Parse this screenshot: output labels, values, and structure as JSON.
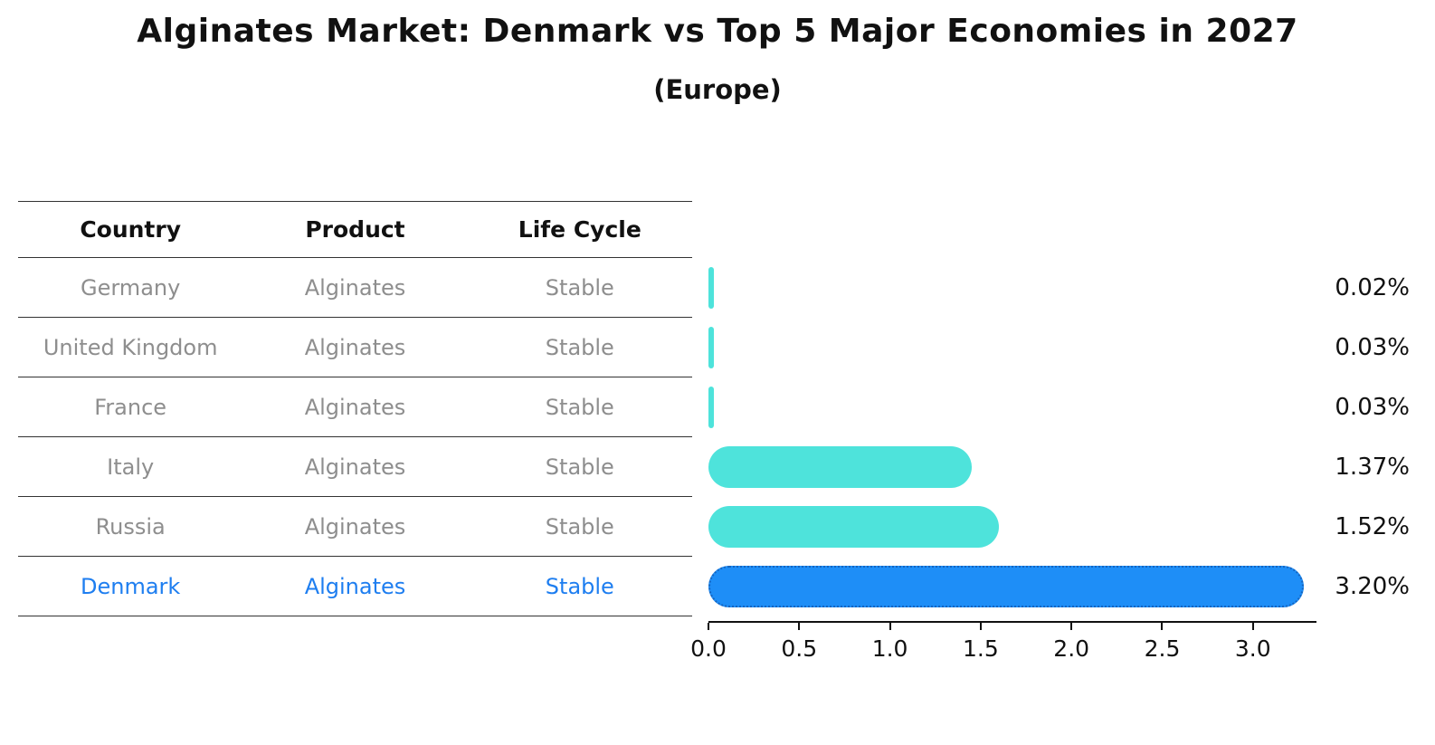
{
  "title": "Alginates Market: Denmark vs Top 5 Major Economies in 2027",
  "subtitle": "(Europe)",
  "table": {
    "headers": [
      "Country",
      "Product",
      "Life Cycle"
    ]
  },
  "chart_data": {
    "type": "bar",
    "orientation": "horizontal",
    "title": "Alginates Market: Denmark vs Top 5 Major Economies in 2027",
    "subtitle": "(Europe)",
    "categories": [
      "Germany",
      "United Kingdom",
      "France",
      "Italy",
      "Russia",
      "Denmark"
    ],
    "values": [
      0.02,
      0.03,
      0.03,
      1.37,
      1.52,
      3.2
    ],
    "value_labels": [
      "0.02%",
      "0.03%",
      "0.03%",
      "1.37%",
      "1.52%",
      "3.20%"
    ],
    "rows": [
      {
        "country": "Germany",
        "product": "Alginates",
        "life_cycle": "Stable",
        "value": 0.02,
        "label": "0.02%",
        "highlight": false
      },
      {
        "country": "United Kingdom",
        "product": "Alginates",
        "life_cycle": "Stable",
        "value": 0.03,
        "label": "0.03%",
        "highlight": false
      },
      {
        "country": "France",
        "product": "Alginates",
        "life_cycle": "Stable",
        "value": 0.03,
        "label": "0.03%",
        "highlight": false
      },
      {
        "country": "Italy",
        "product": "Alginates",
        "life_cycle": "Stable",
        "value": 1.37,
        "label": "1.37%",
        "highlight": false
      },
      {
        "country": "Russia",
        "product": "Alginates",
        "life_cycle": "Stable",
        "value": 1.52,
        "label": "1.52%",
        "highlight": false
      },
      {
        "country": "Denmark",
        "product": "Alginates",
        "life_cycle": "Stable",
        "value": 3.2,
        "label": "3.20%",
        "highlight": true
      }
    ],
    "x_ticks": [
      0.0,
      0.5,
      1.0,
      1.5,
      2.0,
      2.5,
      3.0
    ],
    "x_tick_labels": [
      "0.0",
      "0.5",
      "1.0",
      "1.5",
      "2.0",
      "2.5",
      "3.0"
    ],
    "xlim": [
      0,
      3.35
    ],
    "grid": false,
    "legend": false,
    "colors": {
      "bar": "#4ee3db",
      "highlight_bar": "#1e8ef7",
      "highlight_border": "#1565c0",
      "highlight_text": "#1e7ef0",
      "row_text": "#8e8e8e",
      "axis_text": "#111111",
      "value_text": "#111111"
    }
  }
}
